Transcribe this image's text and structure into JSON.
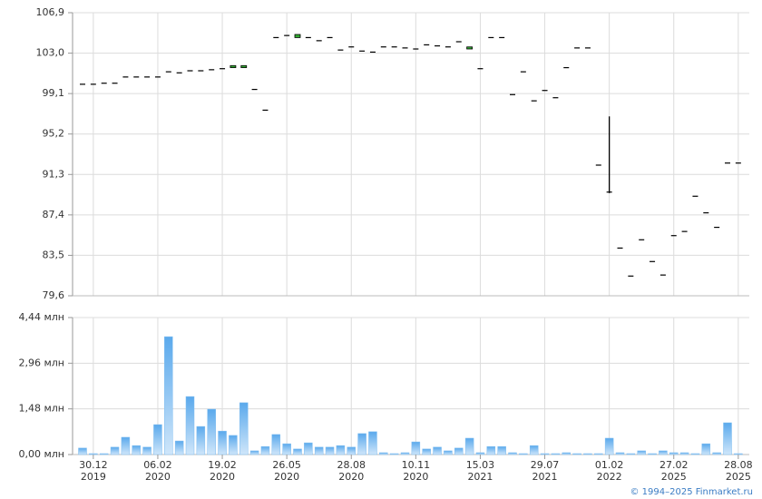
{
  "chart_data": [
    {
      "type": "candlestick",
      "open": [
        100.0,
        100.0,
        100.1,
        100.1,
        100.7,
        100.7,
        100.7,
        100.7,
        101.2,
        101.1,
        101.3,
        101.3,
        101.4,
        101.5,
        101.6,
        101.6,
        99.5,
        97.5,
        104.5,
        104.7,
        104.5,
        104.5,
        104.2,
        104.5,
        103.3,
        103.6,
        103.2,
        103.1,
        103.6,
        103.6,
        103.5,
        103.4,
        103.8,
        103.7,
        103.6,
        104.1,
        103.4,
        101.5,
        104.5,
        104.5,
        99.0,
        101.2,
        98.4,
        99.4,
        98.7,
        101.6,
        103.5,
        103.5,
        92.2,
        89.6,
        84.2,
        81.5,
        85.0,
        82.9,
        81.6,
        85.4,
        85.8,
        89.2,
        87.6,
        86.2,
        92.4,
        92.4
      ],
      "high": [
        100.0,
        100.0,
        100.1,
        100.1,
        100.7,
        100.7,
        100.7,
        100.7,
        101.2,
        101.1,
        101.3,
        101.3,
        101.4,
        101.5,
        101.8,
        101.8,
        99.5,
        97.5,
        104.5,
        104.7,
        104.8,
        104.5,
        104.2,
        104.5,
        103.3,
        103.6,
        103.2,
        103.1,
        103.6,
        103.6,
        103.5,
        103.4,
        103.8,
        103.7,
        103.6,
        104.1,
        103.6,
        101.5,
        104.5,
        104.5,
        99.0,
        101.2,
        98.4,
        99.4,
        98.7,
        101.6,
        103.5,
        103.5,
        92.2,
        96.9,
        84.2,
        81.5,
        85.0,
        82.9,
        81.6,
        85.4,
        85.8,
        89.2,
        87.6,
        86.2,
        92.4,
        92.4
      ],
      "low": [
        100.0,
        100.0,
        100.1,
        100.1,
        100.7,
        100.7,
        100.7,
        100.7,
        101.2,
        101.1,
        101.3,
        101.3,
        101.4,
        101.5,
        101.6,
        101.6,
        99.5,
        97.5,
        104.5,
        104.7,
        104.5,
        104.5,
        104.2,
        104.5,
        103.3,
        103.6,
        103.2,
        103.1,
        103.6,
        103.6,
        103.5,
        103.4,
        103.8,
        103.7,
        103.6,
        104.1,
        103.4,
        101.5,
        104.5,
        104.5,
        99.0,
        101.2,
        98.4,
        99.4,
        98.7,
        101.6,
        103.5,
        103.5,
        92.2,
        89.5,
        84.2,
        81.5,
        85.0,
        82.9,
        81.6,
        85.4,
        85.8,
        89.2,
        87.6,
        86.2,
        92.4,
        92.4
      ],
      "close": [
        100.0,
        100.0,
        100.1,
        100.1,
        100.7,
        100.7,
        100.7,
        100.7,
        101.2,
        101.1,
        101.3,
        101.3,
        101.4,
        101.5,
        101.8,
        101.8,
        99.5,
        97.5,
        104.5,
        104.7,
        104.8,
        104.5,
        104.2,
        104.5,
        103.3,
        103.6,
        103.2,
        103.1,
        103.6,
        103.6,
        103.5,
        103.4,
        103.8,
        103.7,
        103.6,
        104.1,
        103.6,
        101.5,
        104.5,
        104.5,
        99.0,
        101.2,
        98.4,
        99.4,
        98.7,
        101.6,
        103.5,
        103.5,
        92.2,
        89.6,
        84.2,
        81.5,
        85.0,
        82.9,
        81.6,
        85.4,
        85.8,
        89.2,
        87.6,
        86.2,
        92.4,
        92.4
      ],
      "up_color": "#33aa33",
      "ylim": [
        79.6,
        106.9
      ],
      "yticks": [
        {
          "value": 79.6,
          "label": "79,6"
        },
        {
          "value": 83.5,
          "label": "83,5"
        },
        {
          "value": 87.4,
          "label": "87,4"
        },
        {
          "value": 91.3,
          "label": "91,3"
        },
        {
          "value": 95.2,
          "label": "95,2"
        },
        {
          "value": 99.1,
          "label": "99,1"
        },
        {
          "value": 103.0,
          "label": "103,0"
        },
        {
          "value": 106.9,
          "label": "106,9"
        }
      ],
      "grid": true
    },
    {
      "type": "bar",
      "categories": [
        null,
        "30.12 2019",
        null,
        null,
        null,
        null,
        null,
        "06.02 2020",
        null,
        null,
        null,
        null,
        null,
        "19.02 2020",
        null,
        null,
        null,
        null,
        null,
        "26.05 2020",
        null,
        null,
        null,
        null,
        null,
        "28.08 2020",
        null,
        null,
        null,
        null,
        null,
        "10.11 2020",
        null,
        null,
        null,
        null,
        null,
        "15.03 2021",
        null,
        null,
        null,
        null,
        null,
        "29.07 2021",
        null,
        null,
        null,
        null,
        null,
        "01.02 2022",
        null,
        null,
        null,
        null,
        null,
        "27.02 2025",
        null,
        null,
        null,
        null,
        null,
        "28.08 2025"
      ],
      "values": [
        0.21,
        0.03,
        0.03,
        0.24,
        0.56,
        0.29,
        0.24,
        0.97,
        3.82,
        0.44,
        1.88,
        0.91,
        1.47,
        0.76,
        0.62,
        1.68,
        0.12,
        0.26,
        0.65,
        0.35,
        0.18,
        0.38,
        0.24,
        0.24,
        0.29,
        0.24,
        0.68,
        0.74,
        0.06,
        0.03,
        0.06,
        0.41,
        0.18,
        0.24,
        0.12,
        0.21,
        0.53,
        0.06,
        0.26,
        0.26,
        0.06,
        0.03,
        0.29,
        0.03,
        0.03,
        0.06,
        0.03,
        0.03,
        0.03,
        0.53,
        0.06,
        0.03,
        0.12,
        0.03,
        0.12,
        0.06,
        0.06,
        0.03,
        0.35,
        0.06,
        1.03,
        0.03
      ],
      "color": "#7fbdf0",
      "ylim": [
        0,
        4.44
      ],
      "yticks": [
        {
          "value": 0,
          "label": "0,00 млн"
        },
        {
          "value": 1.48,
          "label": "1,48 млн"
        },
        {
          "value": 2.96,
          "label": "2,96 млн"
        },
        {
          "value": 4.44,
          "label": "4,44 млн"
        }
      ],
      "grid": true
    }
  ],
  "footer": "© 1994–2025 Finmarket.ru"
}
